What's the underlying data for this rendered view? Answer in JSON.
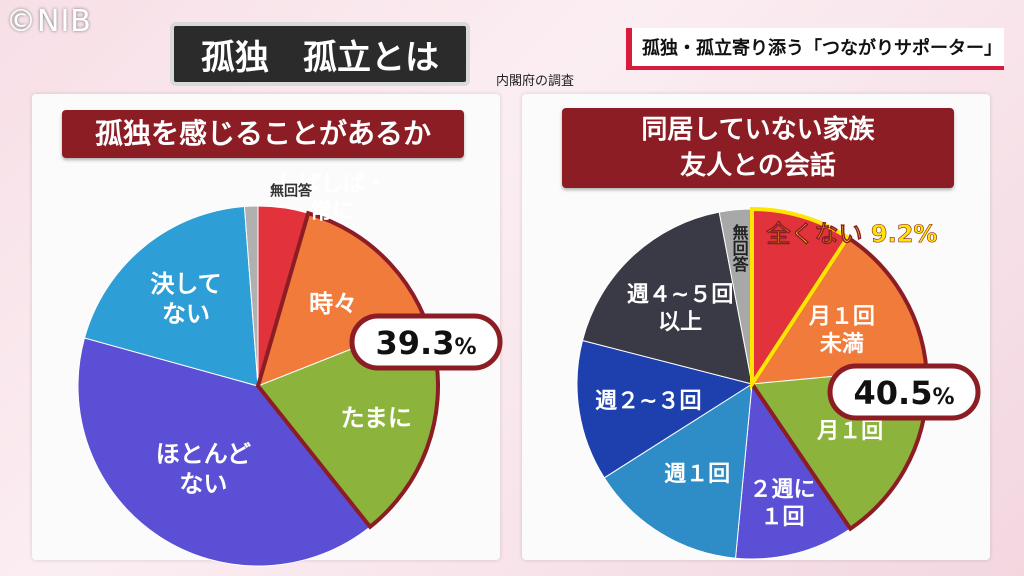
{
  "watermark": "©NIB",
  "headline": "孤独・孤立寄り添う「つながりサポーター」",
  "title": "孤独　孤立とは",
  "source": "内閣府の調査",
  "colors": {
    "panel_title_bg": "#8c1d24",
    "callout_border": "#8c1d24",
    "highlight": "#ffe600"
  },
  "chart_data": [
    {
      "type": "pie",
      "title": "孤独を感じることがあるか",
      "slices": [
        {
          "label": "しばしば・常に",
          "value": 4.5,
          "color": "#e2323b"
        },
        {
          "label": "時々",
          "value": 14.5,
          "color": "#f07b3a"
        },
        {
          "label": "たまに",
          "value": 20.3,
          "color": "#8cb33c"
        },
        {
          "label": "ほとんどない",
          "value": 40.0,
          "color": "#5b4fd6"
        },
        {
          "label": "決してない",
          "value": 19.5,
          "color": "#2e9ed6"
        },
        {
          "label": "無回答",
          "value": 1.2,
          "color": "#b0b0b0"
        }
      ],
      "callout": {
        "value": "39.3",
        "unit": "%"
      }
    },
    {
      "type": "pie",
      "title": "同居していない家族\n友人との会話",
      "slices": [
        {
          "label": "全くない",
          "value": 9.2,
          "color": "#e2323b",
          "annotation": "全くない 9.2%"
        },
        {
          "label": "月１回\n未満",
          "value": 14.3,
          "color": "#f07b3a"
        },
        {
          "label": "月１回",
          "value": 17.0,
          "color": "#8cb33c"
        },
        {
          "label": "２週に\n１回",
          "value": 11.0,
          "color": "#5b4fd6"
        },
        {
          "label": "週１回",
          "value": 14.5,
          "color": "#2e8cc6"
        },
        {
          "label": "週２~３回",
          "value": 13.0,
          "color": "#1e3fae"
        },
        {
          "label": "週４~５回\n以上",
          "value": 18.0,
          "color": "#3a3a46"
        },
        {
          "label": "無回答",
          "value": 3.0,
          "color": "#a8a8a8"
        }
      ],
      "callout": {
        "value": "40.5",
        "unit": "%"
      }
    }
  ]
}
